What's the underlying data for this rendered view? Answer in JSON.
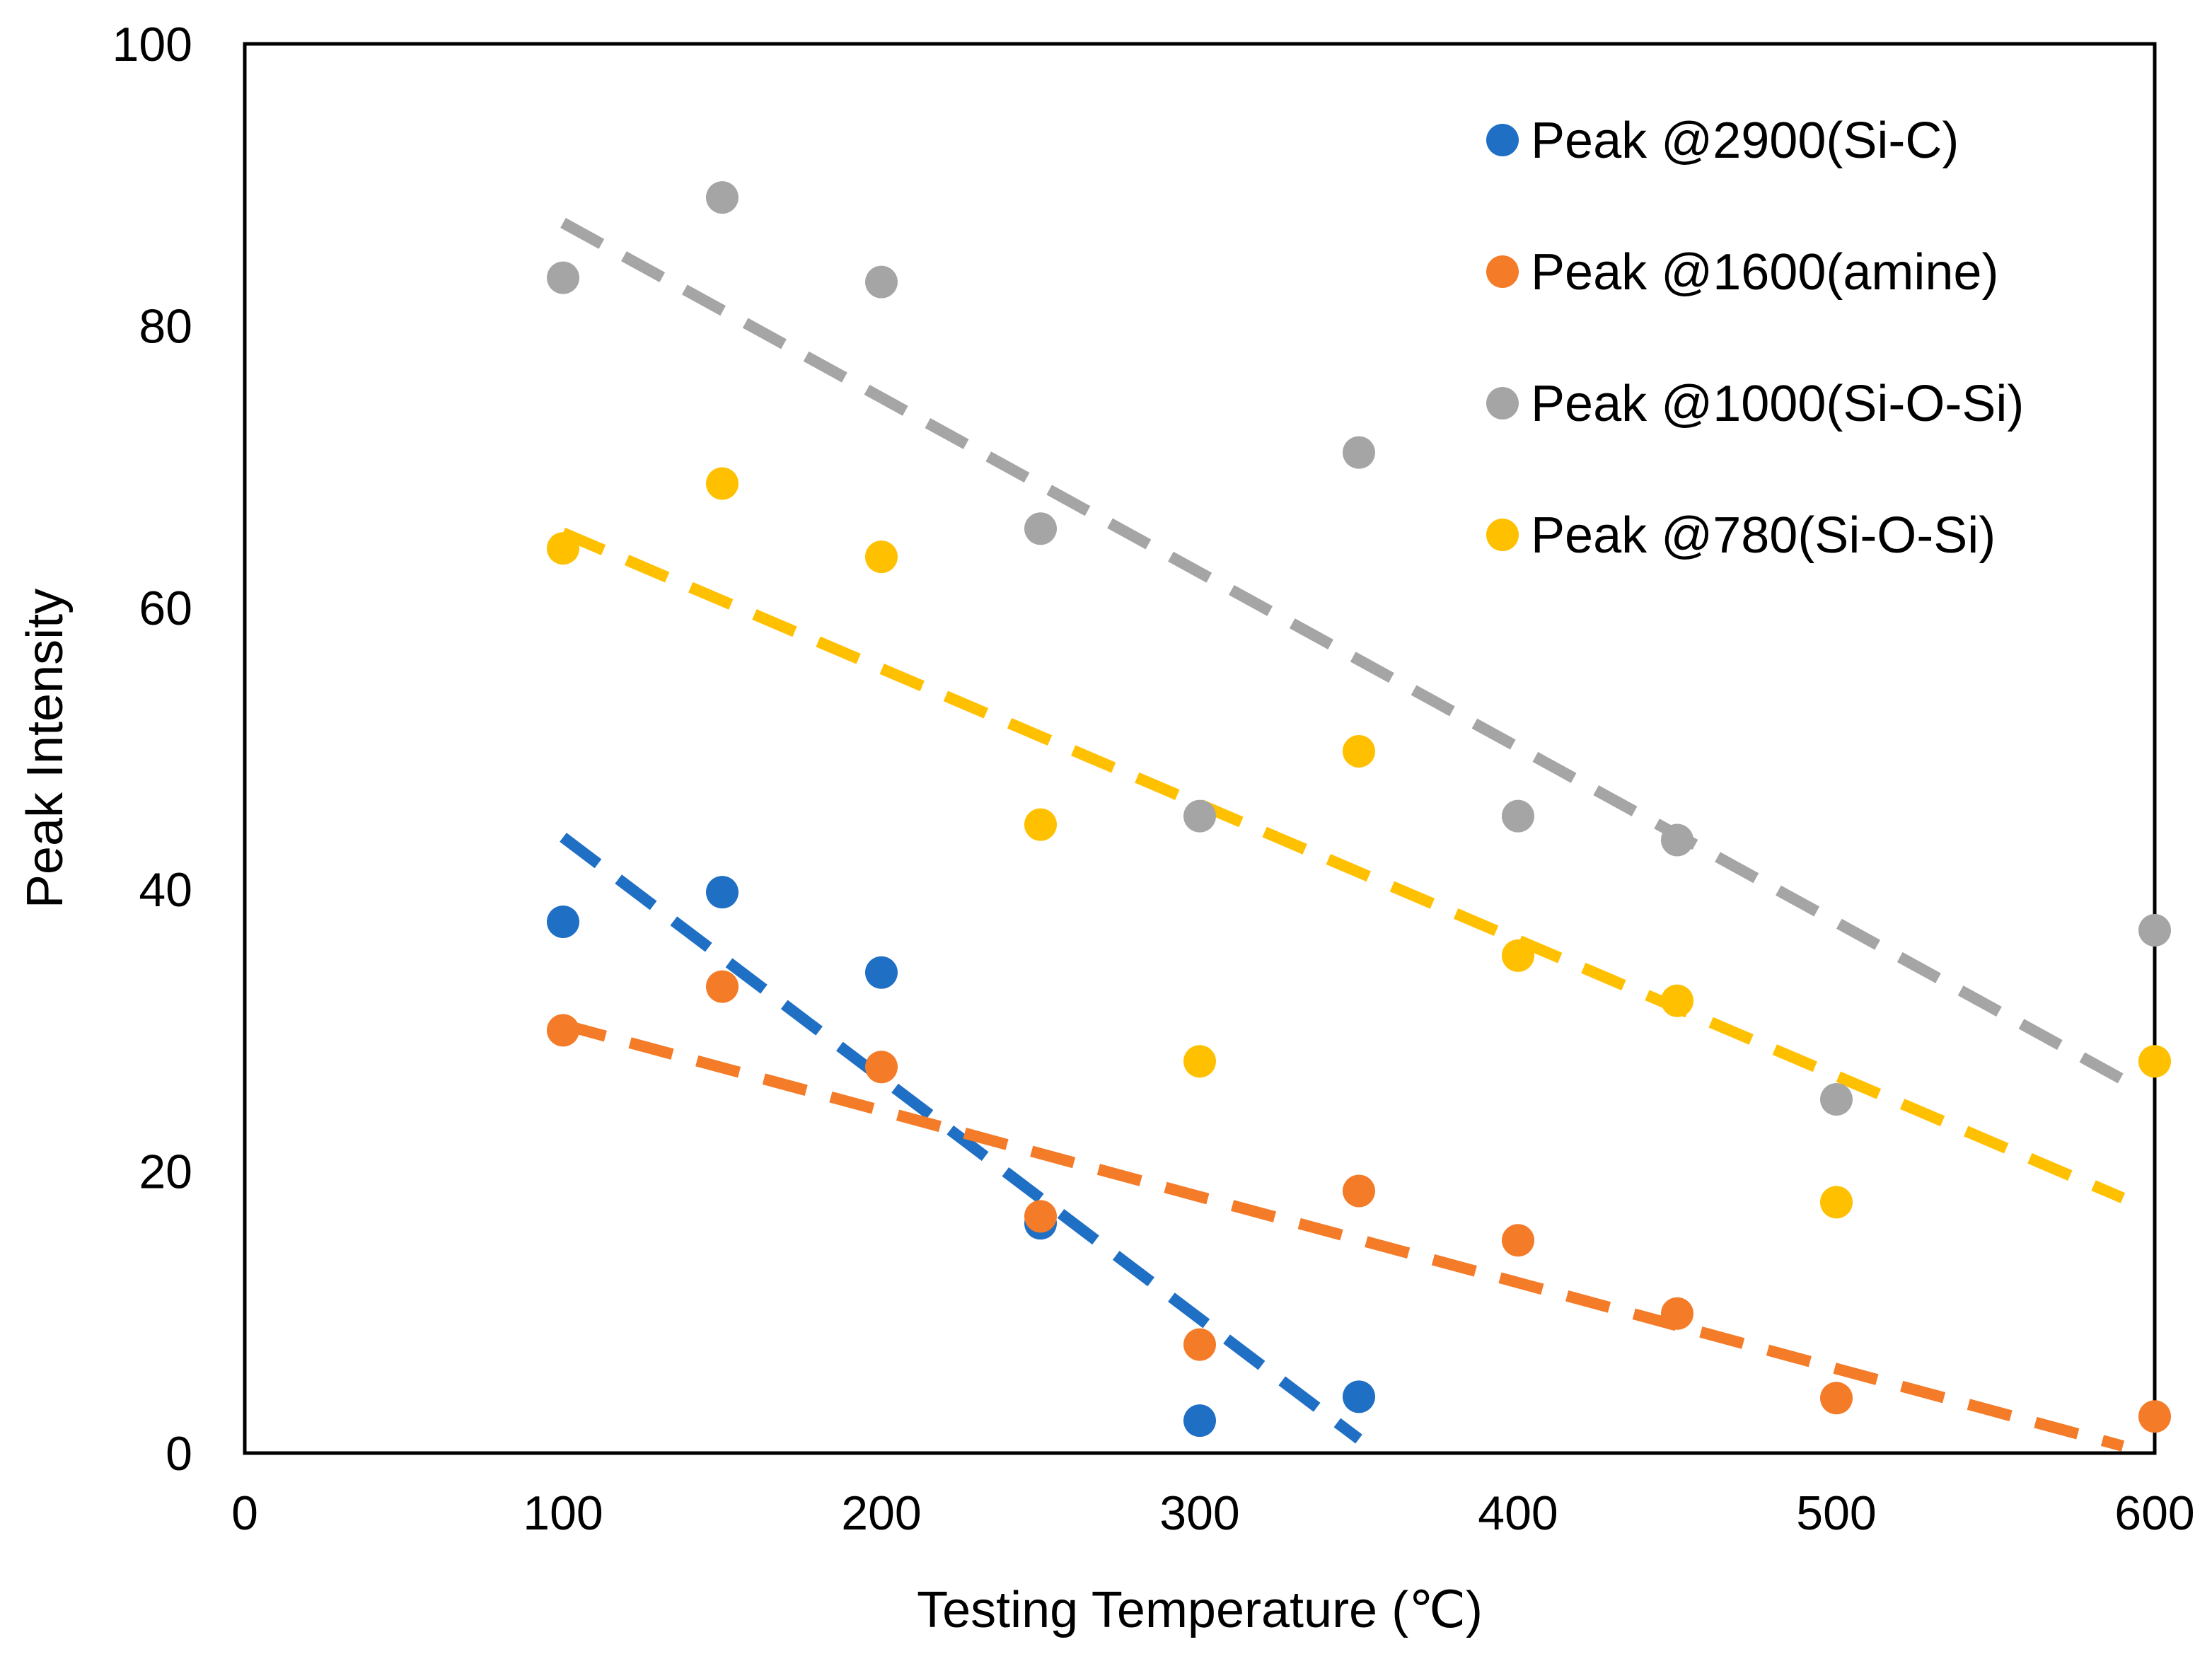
{
  "chart_data": {
    "type": "scatter",
    "title": "",
    "xlabel": "Testing Temperature (℃)",
    "ylabel": "Peak Intensity",
    "xlim": [
      0,
      600
    ],
    "ylim": [
      0,
      100
    ],
    "x_ticks": [
      0,
      100,
      200,
      300,
      400,
      500,
      600
    ],
    "y_ticks": [
      0,
      20,
      40,
      60,
      80,
      100
    ],
    "grid": false,
    "legend_position": "top-right",
    "trendlines": "linear, dashed",
    "series": [
      {
        "name": "Peak @2900(Si-C)",
        "color": "#1f6fc5",
        "points": [
          [
            100,
            37.7
          ],
          [
            150,
            39.8
          ],
          [
            200,
            34.1
          ],
          [
            250,
            16.3
          ],
          [
            300,
            2.3
          ],
          [
            350,
            4.0
          ]
        ],
        "trend": [
          [
            100,
            43.7
          ],
          [
            350,
            1.0
          ]
        ]
      },
      {
        "name": "Peak @1600(amine)",
        "color": "#f47b28",
        "points": [
          [
            100,
            30.0
          ],
          [
            150,
            33.1
          ],
          [
            200,
            27.4
          ],
          [
            250,
            16.8
          ],
          [
            300,
            7.7
          ],
          [
            350,
            18.6
          ],
          [
            400,
            15.1
          ],
          [
            450,
            9.9
          ],
          [
            500,
            3.9
          ],
          [
            600,
            2.6
          ]
        ],
        "trend": [
          [
            100,
            30.4
          ],
          [
            590,
            0.5
          ]
        ]
      },
      {
        "name": "Peak @1000(Si-O-Si)",
        "color": "#a5a5a5",
        "points": [
          [
            100,
            83.4
          ],
          [
            150,
            89.1
          ],
          [
            200,
            83.1
          ],
          [
            250,
            65.6
          ],
          [
            300,
            45.2
          ],
          [
            350,
            71.0
          ],
          [
            400,
            45.2
          ],
          [
            450,
            43.5
          ],
          [
            500,
            25.1
          ],
          [
            600,
            37.1
          ]
        ],
        "trend": [
          [
            100,
            87.3
          ],
          [
            590,
            26.5
          ]
        ]
      },
      {
        "name": "Peak @780(Si-O-Si)",
        "color": "#ffc000",
        "points": [
          [
            100,
            64.2
          ],
          [
            150,
            68.8
          ],
          [
            200,
            63.6
          ],
          [
            250,
            44.6
          ],
          [
            300,
            27.8
          ],
          [
            350,
            49.8
          ],
          [
            400,
            35.3
          ],
          [
            450,
            32.1
          ],
          [
            500,
            17.8
          ],
          [
            600,
            27.8
          ]
        ],
        "trend": [
          [
            100,
            65.3
          ],
          [
            590,
            18.1
          ]
        ]
      }
    ]
  }
}
